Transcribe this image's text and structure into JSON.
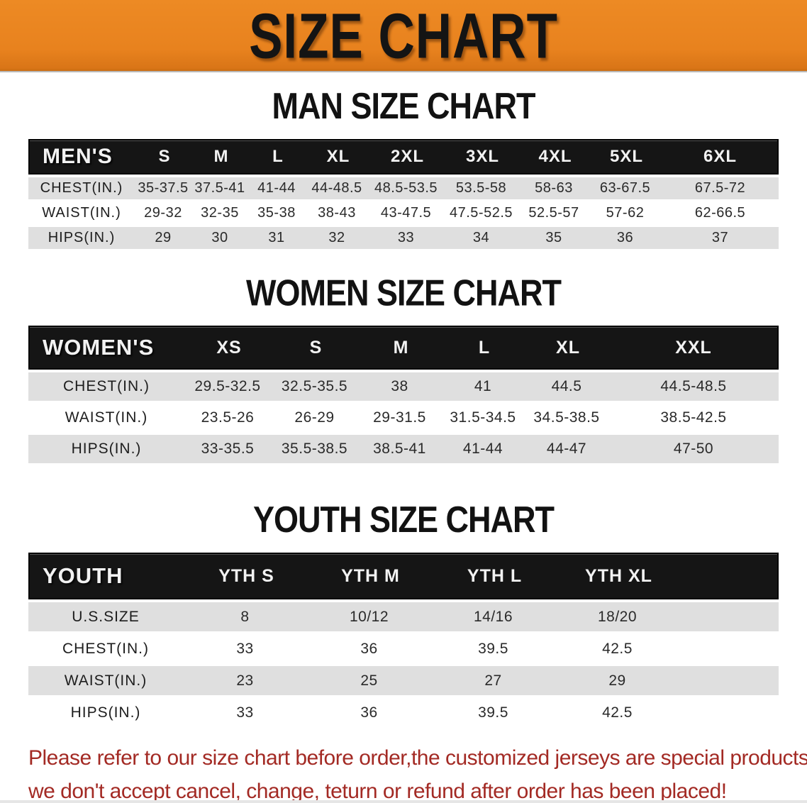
{
  "banner": {
    "title": "SIZE CHART"
  },
  "colors": {
    "banner_bg": "#E8821E",
    "header_bar": "#151515",
    "row_stripe": "#DFDFDF",
    "footer_text": "#A32A24"
  },
  "sections": [
    {
      "heading": "MAN SIZE CHART",
      "table": {
        "header": [
          "MEN'S",
          "S",
          "M",
          "L",
          "XL",
          "2XL",
          "3XL",
          "4XL",
          "5XL",
          "6XL"
        ],
        "rows": [
          {
            "label": "CHEST(IN.)",
            "values": [
              "35-37.5",
              "37.5-41",
              "41-44",
              "44-48.5",
              "48.5-53.5",
              "53.5-58",
              "58-63",
              "63-67.5",
              "67.5-72"
            ]
          },
          {
            "label": "WAIST(IN.)",
            "values": [
              "29-32",
              "32-35",
              "35-38",
              "38-43",
              "43-47.5",
              "47.5-52.5",
              "52.5-57",
              "57-62",
              "62-66.5"
            ]
          },
          {
            "label": "HIPS(IN.)",
            "values": [
              "29",
              "30",
              "31",
              "32",
              "33",
              "34",
              "35",
              "36",
              "37"
            ]
          }
        ]
      }
    },
    {
      "heading": "WOMEN SIZE CHART",
      "table": {
        "header": [
          "WOMEN'S",
          "XS",
          "S",
          "M",
          "L",
          "XL",
          "XXL"
        ],
        "rows": [
          {
            "label": "CHEST(IN.)",
            "values": [
              "29.5-32.5",
              "32.5-35.5",
              "38",
              "41",
              "44.5",
              "44.5-48.5"
            ]
          },
          {
            "label": "WAIST(IN.)",
            "values": [
              "23.5-26",
              "26-29",
              "29-31.5",
              "31.5-34.5",
              "34.5-38.5",
              "38.5-42.5"
            ]
          },
          {
            "label": "HIPS(IN.)",
            "values": [
              "33-35.5",
              "35.5-38.5",
              "38.5-41",
              "41-44",
              "44-47",
              "47-50"
            ]
          }
        ]
      }
    },
    {
      "heading": "YOUTH SIZE CHART",
      "table": {
        "header": [
          "YOUTH",
          "YTH S",
          "YTH M",
          "YTH L",
          "YTH XL"
        ],
        "rows": [
          {
            "label": "U.S.SIZE",
            "values": [
              "8",
              "10/12",
              "14/16",
              "18/20"
            ]
          },
          {
            "label": "CHEST(IN.)",
            "values": [
              "33",
              "36",
              "39.5",
              "42.5"
            ]
          },
          {
            "label": "WAIST(IN.)",
            "values": [
              "23",
              "25",
              "27",
              "29"
            ]
          },
          {
            "label": "HIPS(IN.)",
            "values": [
              "33",
              "36",
              "39.5",
              "42.5"
            ]
          }
        ]
      }
    }
  ],
  "footer": {
    "line1": "Please refer to our size chart before order,the customized jerseys are special products,",
    "line2": "we don't accept cancel, change, teturn or refund after order has been placed!"
  }
}
